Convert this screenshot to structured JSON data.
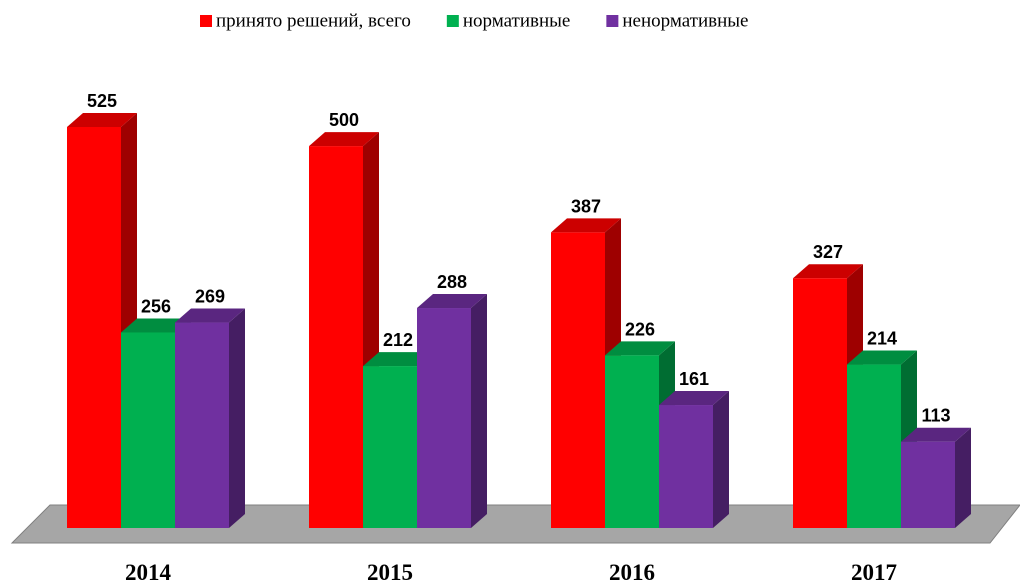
{
  "chart_data": {
    "type": "bar3d",
    "categories": [
      "2014",
      "2015",
      "2016",
      "2017"
    ],
    "series": [
      {
        "name": "принято решений, всего",
        "color": "#ff0000",
        "values": [
          525,
          500,
          387,
          327
        ]
      },
      {
        "name": "нормативные",
        "color": "#00b050",
        "values": [
          256,
          212,
          226,
          214
        ]
      },
      {
        "name": "ненормативные",
        "color": "#7030a0",
        "values": [
          269,
          288,
          161,
          113
        ]
      }
    ],
    "legend": "top"
  }
}
